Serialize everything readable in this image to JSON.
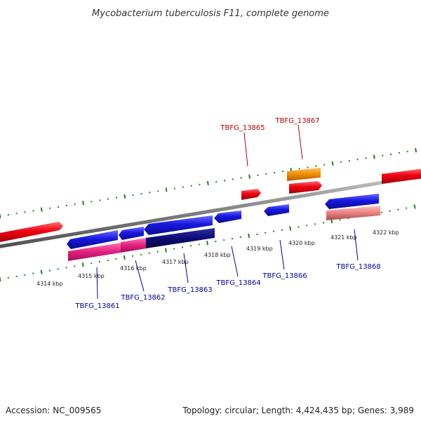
{
  "title": "Mycobacterium tuberculosis F11, complete genome",
  "footer": {
    "accession": "Accession: NC_009565",
    "topology": "Topology: circular; Length: 4,424,435 bp; Genes: 3,989"
  },
  "colors": {
    "backbone": "#808080",
    "forward_cds": "#e8000b",
    "reverse_cds": "#1010d0",
    "forward_rna": "#f08c00",
    "reverse_dark": "#0a0a78",
    "reverse_pink": "#e0207f",
    "reverse_salmon": "#e88080",
    "forward_label": "#b00000",
    "reverse_label": "#0000a0",
    "tick": "#2a7a2a"
  },
  "kbp_ticks": [
    "4314 kbp",
    "4315 kbp",
    "4316 kbp",
    "4317 kbp",
    "4318 kbp",
    "4319 kbp",
    "4320 kbp",
    "4321 kbp",
    "4322 kbp"
  ],
  "gene_labels": [
    {
      "text": "TBFG_13865",
      "strand": "forward"
    },
    {
      "text": "TBFG_13867",
      "strand": "forward"
    },
    {
      "text": "TBFG_13861",
      "strand": "reverse"
    },
    {
      "text": "TBFG_13862",
      "strand": "reverse"
    },
    {
      "text": "TBFG_13863",
      "strand": "reverse"
    },
    {
      "text": "TBFG_13864",
      "strand": "reverse"
    },
    {
      "text": "TBFG_13866",
      "strand": "reverse"
    },
    {
      "text": "TBFG_13868",
      "strand": "reverse"
    }
  ]
}
